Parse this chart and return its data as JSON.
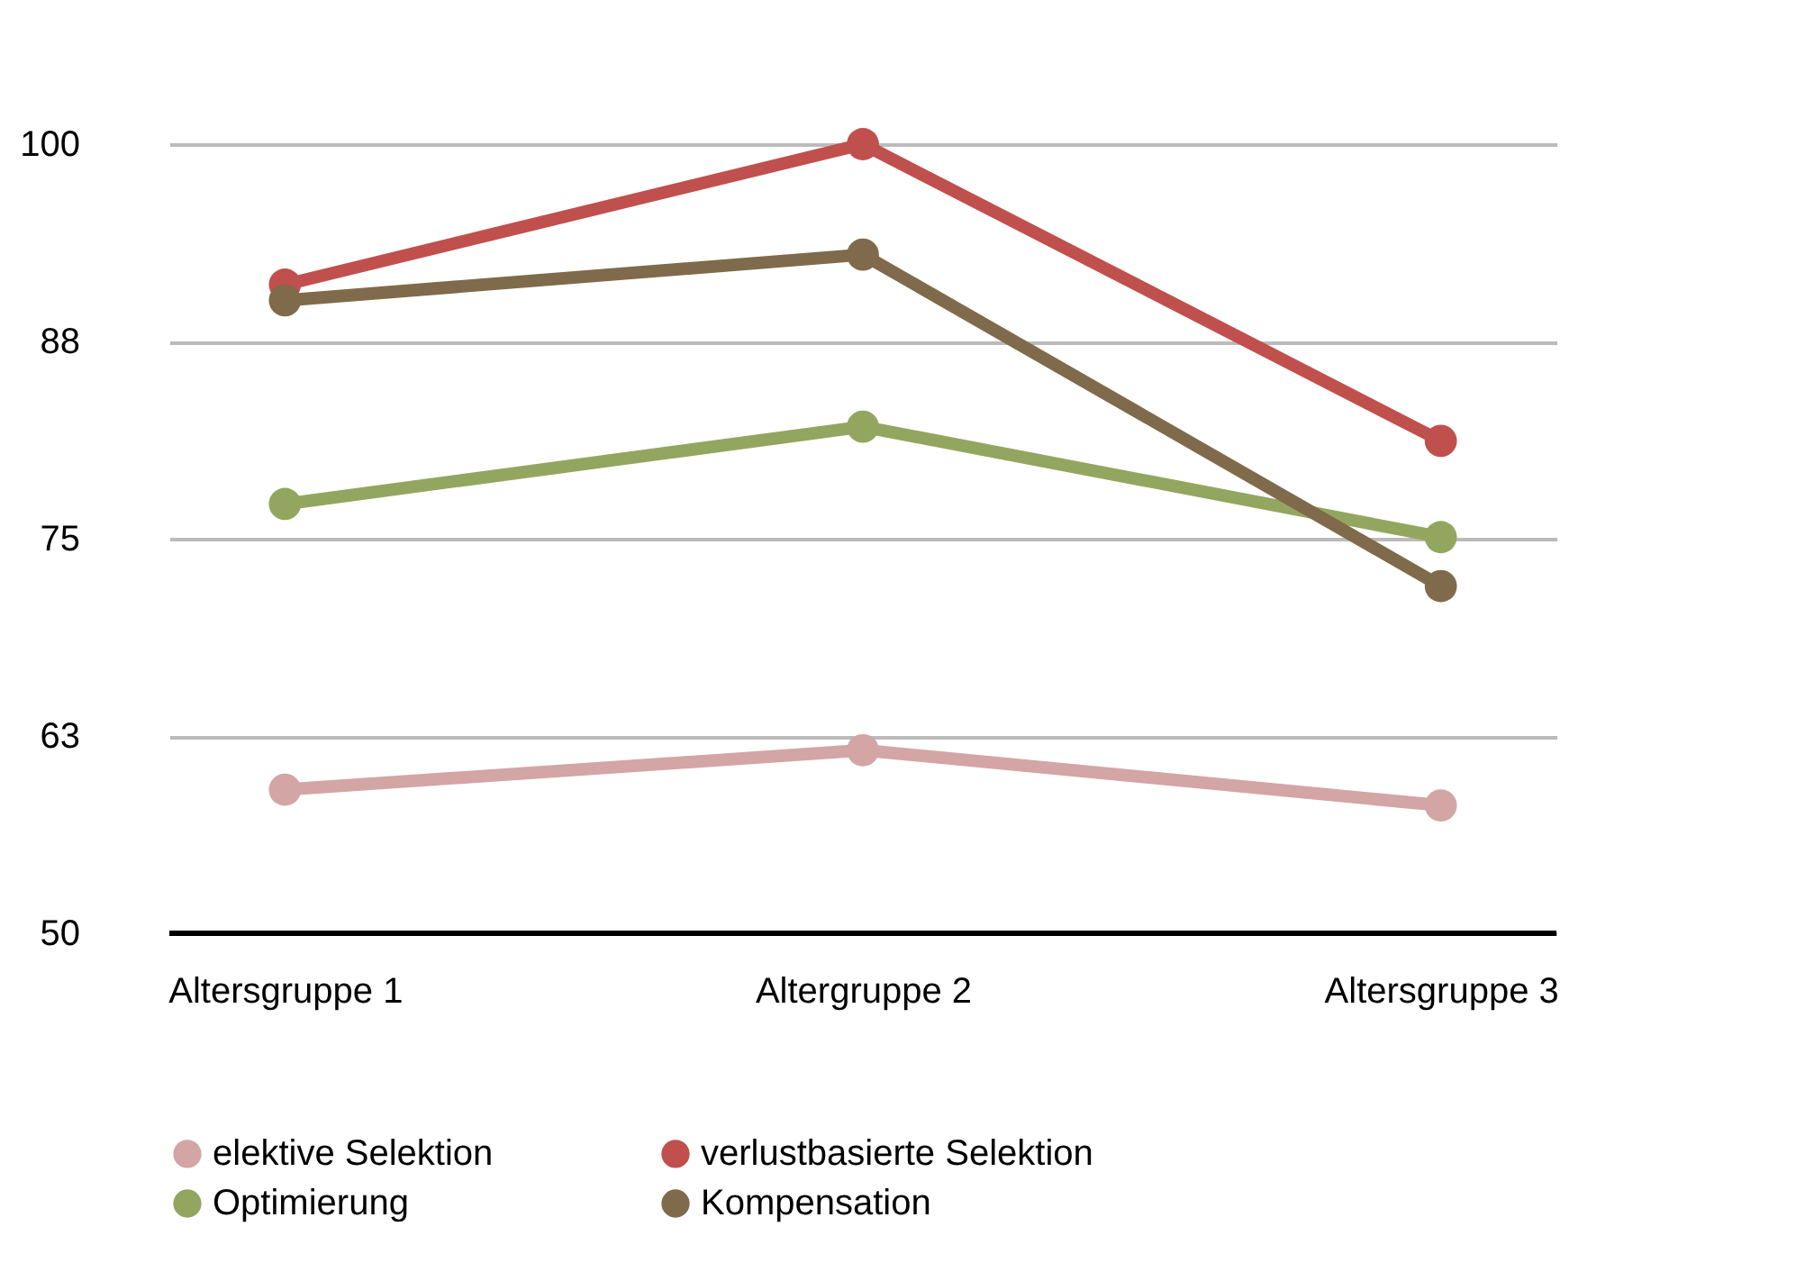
{
  "chart_data": {
    "type": "line",
    "categories": [
      "Altersgruppe 1",
      "Altergruppe 2",
      "Altersgruppe 3"
    ],
    "series": [
      {
        "name": "elektive Selektion",
        "color": "#d4a5a5",
        "values": [
          59.1,
          61.6,
          58.1
        ]
      },
      {
        "name": "verlustbasierte Selektion",
        "color": "#c0504d",
        "values": [
          91.1,
          100,
          81.2
        ]
      },
      {
        "name": "Optimierung",
        "color": "#93a660",
        "values": [
          77.2,
          82.1,
          75.1
        ]
      },
      {
        "name": "Kompensation",
        "color": "#7f6a4b",
        "values": [
          90.1,
          93.0,
          72.0
        ]
      }
    ],
    "ylim": [
      50,
      100
    ],
    "yticks": [
      50,
      {
        "value": 62.5,
        "label": "63"
      },
      75,
      {
        "value": 87.5,
        "label": "88"
      },
      100
    ],
    "grid": "y",
    "legend": "bottom",
    "marker": "circle",
    "line_style": "solid"
  }
}
